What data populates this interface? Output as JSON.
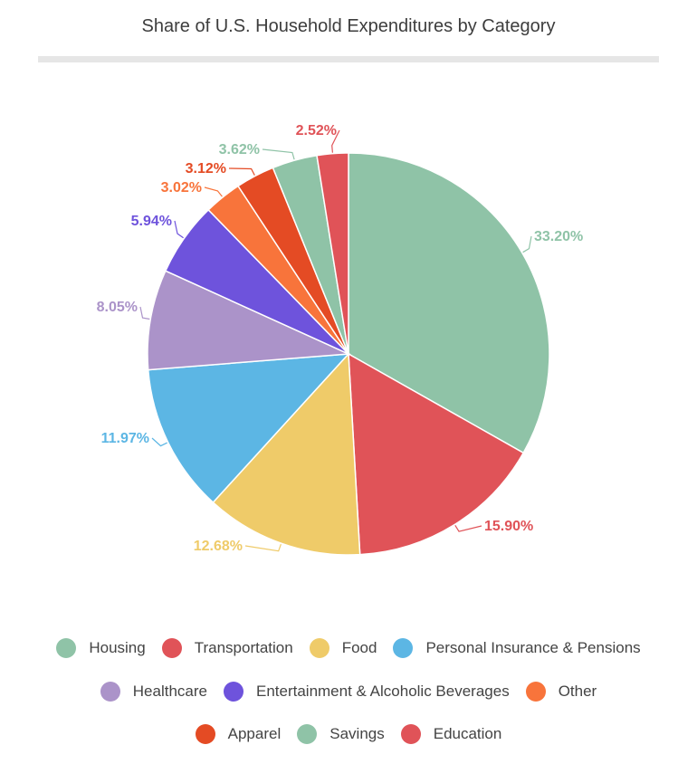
{
  "chart_data": {
    "type": "pie",
    "title": "Share of U.S. Household Expenditures by Category",
    "slices": [
      {
        "label": "Housing",
        "value": 33.2,
        "display": "33.20%",
        "color": "#8fc3a7"
      },
      {
        "label": "Transportation",
        "value": 15.9,
        "display": "15.90%",
        "color": "#e05358"
      },
      {
        "label": "Food",
        "value": 12.68,
        "display": "12.68%",
        "color": "#efcb69"
      },
      {
        "label": "Personal Insurance & Pensions",
        "value": 11.97,
        "display": "11.97%",
        "color": "#5cb6e4"
      },
      {
        "label": "Healthcare",
        "value": 8.05,
        "display": "8.05%",
        "color": "#ab93c9"
      },
      {
        "label": "Entertainment & Alcoholic Beverages",
        "value": 5.94,
        "display": "5.94%",
        "color": "#6e53dc"
      },
      {
        "label": "Other",
        "value": 3.02,
        "display": "3.02%",
        "color": "#f8743b"
      },
      {
        "label": "Apparel",
        "value": 3.12,
        "display": "3.12%",
        "color": "#e44b24"
      },
      {
        "label": "Savings",
        "value": 3.62,
        "display": "3.62%",
        "color": "#8fc3a7"
      },
      {
        "label": "Education",
        "value": 2.52,
        "display": "2.52%",
        "color": "#e05358"
      }
    ],
    "legend_placement": "bottom"
  }
}
